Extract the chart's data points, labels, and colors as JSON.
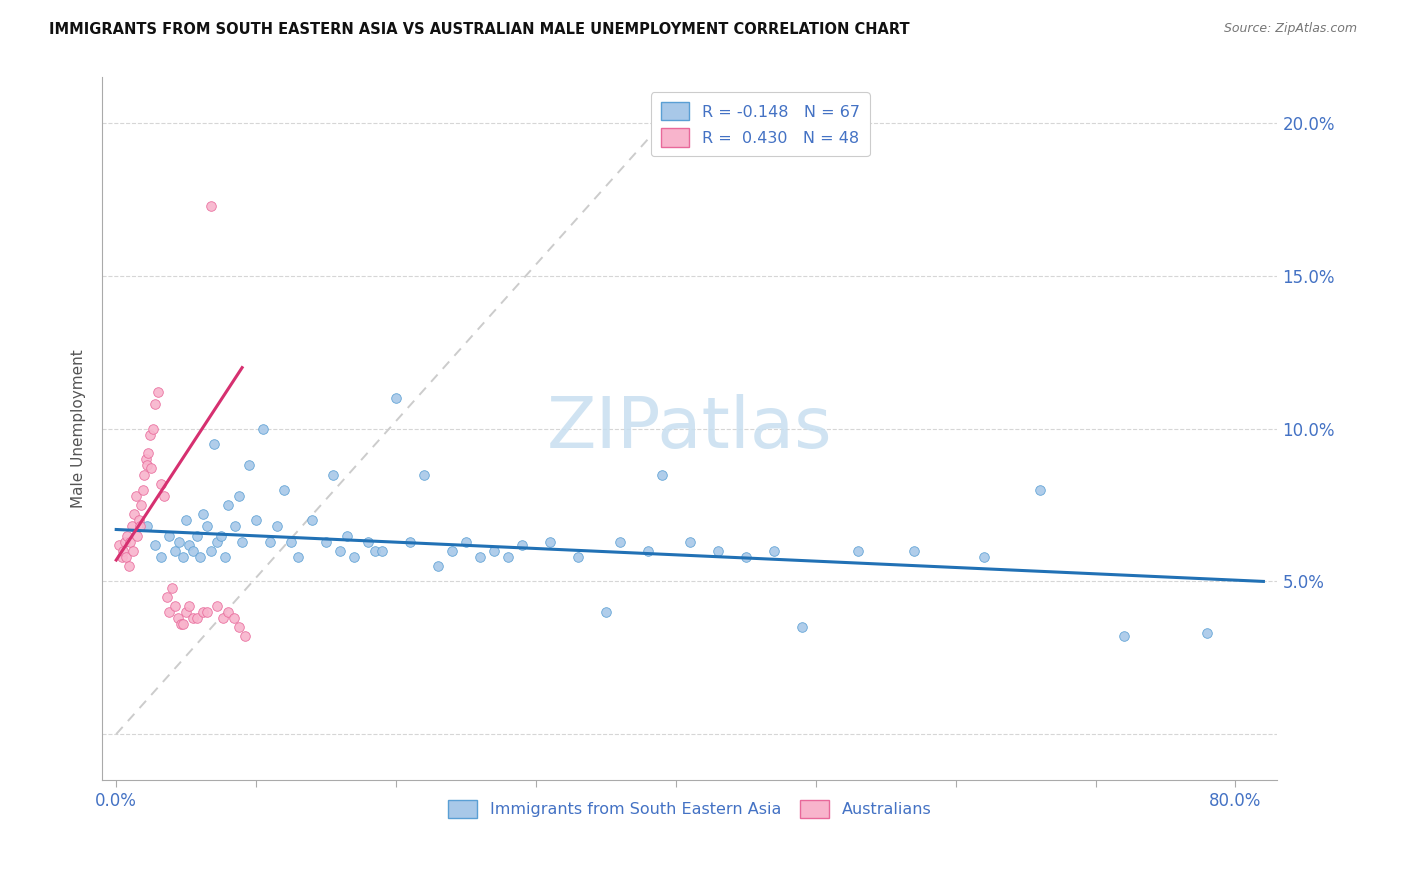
{
  "title": "IMMIGRANTS FROM SOUTH EASTERN ASIA VS AUSTRALIAN MALE UNEMPLOYMENT CORRELATION CHART",
  "source": "Source: ZipAtlas.com",
  "ylabel": "Male Unemployment",
  "xlim": [
    -0.01,
    0.83
  ],
  "ylim": [
    -0.015,
    0.215
  ],
  "x_tick_positions": [
    0.0,
    0.1,
    0.2,
    0.3,
    0.4,
    0.5,
    0.6,
    0.7,
    0.8
  ],
  "x_tick_labels": [
    "0.0%",
    "",
    "",
    "",
    "",
    "",
    "",
    "",
    "80.0%"
  ],
  "y_tick_positions": [
    0.0,
    0.05,
    0.1,
    0.15,
    0.2
  ],
  "y_tick_labels_right": [
    "",
    "5.0%",
    "10.0%",
    "15.0%",
    "20.0%"
  ],
  "color_blue_fill": "#a8c8e8",
  "color_blue_edge": "#5a9fd4",
  "color_pink_fill": "#f8b4cc",
  "color_pink_edge": "#e8689a",
  "color_trend_blue": "#2171b5",
  "color_trend_pink": "#d63070",
  "color_diag": "#cccccc",
  "color_axis_text": "#4472c4",
  "color_grid": "#cccccc",
  "watermark_text": "ZIPatlas",
  "watermark_color": "#c8dff0",
  "legend1_label": "R = -0.148   N = 67",
  "legend2_label": "R =  0.430   N = 48",
  "bottom_label1": "Immigrants from South Eastern Asia",
  "bottom_label2": "Australians",
  "blue_trend": [
    0.0,
    0.82,
    0.067,
    0.05
  ],
  "pink_trend": [
    0.0,
    0.09,
    0.057,
    0.12
  ],
  "diag_line": [
    0.0,
    0.4,
    0.0,
    0.205
  ],
  "blue_x": [
    0.022,
    0.028,
    0.032,
    0.038,
    0.042,
    0.045,
    0.048,
    0.05,
    0.052,
    0.055,
    0.058,
    0.06,
    0.062,
    0.065,
    0.068,
    0.07,
    0.072,
    0.075,
    0.078,
    0.08,
    0.085,
    0.088,
    0.09,
    0.095,
    0.1,
    0.105,
    0.11,
    0.115,
    0.12,
    0.125,
    0.13,
    0.14,
    0.15,
    0.155,
    0.16,
    0.165,
    0.17,
    0.18,
    0.185,
    0.19,
    0.2,
    0.21,
    0.22,
    0.23,
    0.24,
    0.25,
    0.26,
    0.27,
    0.28,
    0.29,
    0.31,
    0.33,
    0.35,
    0.36,
    0.38,
    0.39,
    0.41,
    0.43,
    0.45,
    0.47,
    0.49,
    0.53,
    0.57,
    0.62,
    0.66,
    0.72,
    0.78
  ],
  "blue_y": [
    0.068,
    0.062,
    0.058,
    0.065,
    0.06,
    0.063,
    0.058,
    0.07,
    0.062,
    0.06,
    0.065,
    0.058,
    0.072,
    0.068,
    0.06,
    0.095,
    0.063,
    0.065,
    0.058,
    0.075,
    0.068,
    0.078,
    0.063,
    0.088,
    0.07,
    0.1,
    0.063,
    0.068,
    0.08,
    0.063,
    0.058,
    0.07,
    0.063,
    0.085,
    0.06,
    0.065,
    0.058,
    0.063,
    0.06,
    0.06,
    0.11,
    0.063,
    0.085,
    0.055,
    0.06,
    0.063,
    0.058,
    0.06,
    0.058,
    0.062,
    0.063,
    0.058,
    0.04,
    0.063,
    0.06,
    0.085,
    0.063,
    0.06,
    0.058,
    0.06,
    0.035,
    0.06,
    0.06,
    0.058,
    0.08,
    0.032,
    0.033
  ],
  "pink_x": [
    0.002,
    0.004,
    0.005,
    0.006,
    0.007,
    0.008,
    0.009,
    0.01,
    0.011,
    0.012,
    0.013,
    0.014,
    0.015,
    0.016,
    0.017,
    0.018,
    0.019,
    0.02,
    0.021,
    0.022,
    0.023,
    0.024,
    0.025,
    0.026,
    0.028,
    0.03,
    0.032,
    0.034,
    0.036,
    0.038,
    0.04,
    0.042,
    0.044,
    0.046,
    0.048,
    0.05,
    0.052,
    0.055,
    0.058,
    0.062,
    0.065,
    0.068,
    0.072,
    0.076,
    0.08,
    0.084,
    0.088,
    0.092
  ],
  "pink_y": [
    0.062,
    0.058,
    0.06,
    0.063,
    0.058,
    0.065,
    0.055,
    0.063,
    0.068,
    0.06,
    0.072,
    0.078,
    0.065,
    0.07,
    0.068,
    0.075,
    0.08,
    0.085,
    0.09,
    0.088,
    0.092,
    0.098,
    0.087,
    0.1,
    0.108,
    0.112,
    0.082,
    0.078,
    0.045,
    0.04,
    0.048,
    0.042,
    0.038,
    0.036,
    0.036,
    0.04,
    0.042,
    0.038,
    0.038,
    0.04,
    0.04,
    0.173,
    0.042,
    0.038,
    0.04,
    0.038,
    0.035,
    0.032
  ]
}
